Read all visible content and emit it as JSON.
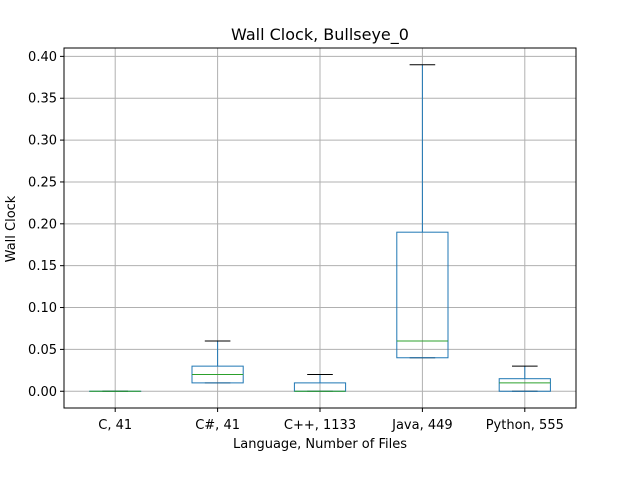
{
  "chart_data": {
    "type": "box",
    "title": "Wall Clock, Bullseye_0",
    "xlabel": "Language, Number of Files",
    "ylabel": "Wall Clock",
    "ylim": [
      -0.02,
      0.41
    ],
    "yticks": [
      0.0,
      0.05,
      0.1,
      0.15,
      0.2,
      0.25,
      0.3,
      0.35,
      0.4
    ],
    "ytick_labels": [
      "0.00",
      "0.05",
      "0.10",
      "0.15",
      "0.20",
      "0.25",
      "0.30",
      "0.35",
      "0.40"
    ],
    "grid": true,
    "categories": [
      "C, 41",
      "C#, 41",
      "C++, 1133",
      "Java, 449",
      "Python, 555"
    ],
    "boxes": [
      {
        "whisker_low": 0.0,
        "q1": 0.0,
        "median": 0.0,
        "q3": 0.0,
        "whisker_high": 0.0
      },
      {
        "whisker_low": 0.01,
        "q1": 0.01,
        "median": 0.02,
        "q3": 0.03,
        "whisker_high": 0.06
      },
      {
        "whisker_low": 0.0,
        "q1": 0.0,
        "median": 0.0,
        "q3": 0.01,
        "whisker_high": 0.02
      },
      {
        "whisker_low": 0.04,
        "q1": 0.04,
        "median": 0.06,
        "q3": 0.19,
        "whisker_high": 0.39
      },
      {
        "whisker_low": 0.0,
        "q1": 0.0,
        "median": 0.01,
        "q3": 0.015,
        "whisker_high": 0.03
      }
    ],
    "colors": {
      "box": "#1f77b4",
      "median": "#2ca02c",
      "whisker": "#1f77b4",
      "cap": "#000000",
      "grid": "#b0b0b0",
      "axes": "#000000"
    }
  }
}
